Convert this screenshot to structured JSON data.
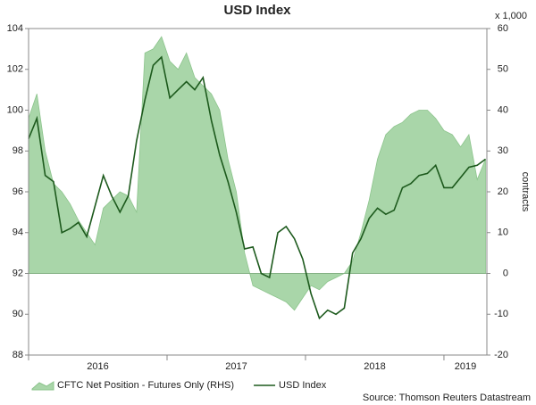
{
  "chart_data": {
    "type": "line",
    "title": "USD Index",
    "y2_unit": "x 1,000",
    "y2label": "contracts",
    "source": "Source: Thomson Reuters Datastream",
    "x": [
      2016,
      2016.06,
      2016.12,
      2016.18,
      2016.24,
      2016.3,
      2016.36,
      2016.42,
      2016.48,
      2016.54,
      2016.6,
      2016.66,
      2016.72,
      2016.78,
      2016.84,
      2016.9,
      2016.96,
      2017.02,
      2017.08,
      2017.14,
      2017.2,
      2017.26,
      2017.32,
      2017.38,
      2017.44,
      2017.5,
      2017.56,
      2017.62,
      2017.68,
      2017.74,
      2017.8,
      2017.86,
      2017.92,
      2017.98,
      2018.04,
      2018.1,
      2018.16,
      2018.22,
      2018.28,
      2018.34,
      2018.4,
      2018.46,
      2018.52,
      2018.58,
      2018.64,
      2018.7,
      2018.76,
      2018.82,
      2018.88,
      2018.94,
      2019,
      2019.06,
      2019.12,
      2019.18,
      2019.24,
      2019.3
    ],
    "xlim": [
      2016,
      2019.31
    ],
    "xticks": [
      2016,
      2017,
      2018,
      2019
    ],
    "ylim": [
      88,
      104
    ],
    "yticks": [
      88,
      90,
      92,
      94,
      96,
      98,
      100,
      102,
      104
    ],
    "y2lim": [
      -20,
      60
    ],
    "y2ticks": [
      -20,
      -10,
      0,
      10,
      20,
      30,
      40,
      50,
      60
    ],
    "series": [
      {
        "name": "CFTC Net Position - Futures Only (RHS)",
        "type": "area",
        "axis": "y2",
        "color": "#a9d6a9",
        "values": [
          38,
          44,
          30,
          22,
          20,
          17,
          13,
          10,
          7,
          16,
          18,
          20,
          19,
          15,
          54,
          55,
          58,
          52,
          50,
          54,
          48,
          46,
          44,
          40,
          28,
          20,
          5,
          -3,
          -4,
          -5,
          -6,
          -7,
          -9,
          -6,
          -3,
          -4,
          -2,
          -1,
          0,
          3,
          10,
          18,
          28,
          34,
          36,
          37,
          39,
          40,
          40,
          38,
          35,
          34,
          31,
          34,
          23,
          28
        ]
      },
      {
        "name": "USD Index",
        "type": "line",
        "color": "#1d5a1d",
        "values": [
          98.6,
          99.6,
          96.8,
          96.5,
          94.0,
          94.2,
          94.5,
          93.8,
          95.3,
          96.8,
          95.8,
          95.0,
          95.8,
          98.5,
          100.5,
          102.2,
          102.6,
          100.6,
          101.0,
          101.4,
          101.0,
          101.6,
          99.5,
          97.8,
          96.5,
          95.0,
          93.2,
          93.3,
          92.0,
          91.8,
          94.0,
          94.3,
          93.7,
          92.7,
          91.0,
          89.8,
          90.2,
          90.0,
          90.3,
          93.0,
          93.7,
          94.7,
          95.2,
          94.9,
          95.1,
          96.2,
          96.4,
          96.8,
          96.9,
          97.3,
          96.2,
          96.2,
          96.7,
          97.2,
          97.3,
          97.6
        ]
      }
    ]
  }
}
